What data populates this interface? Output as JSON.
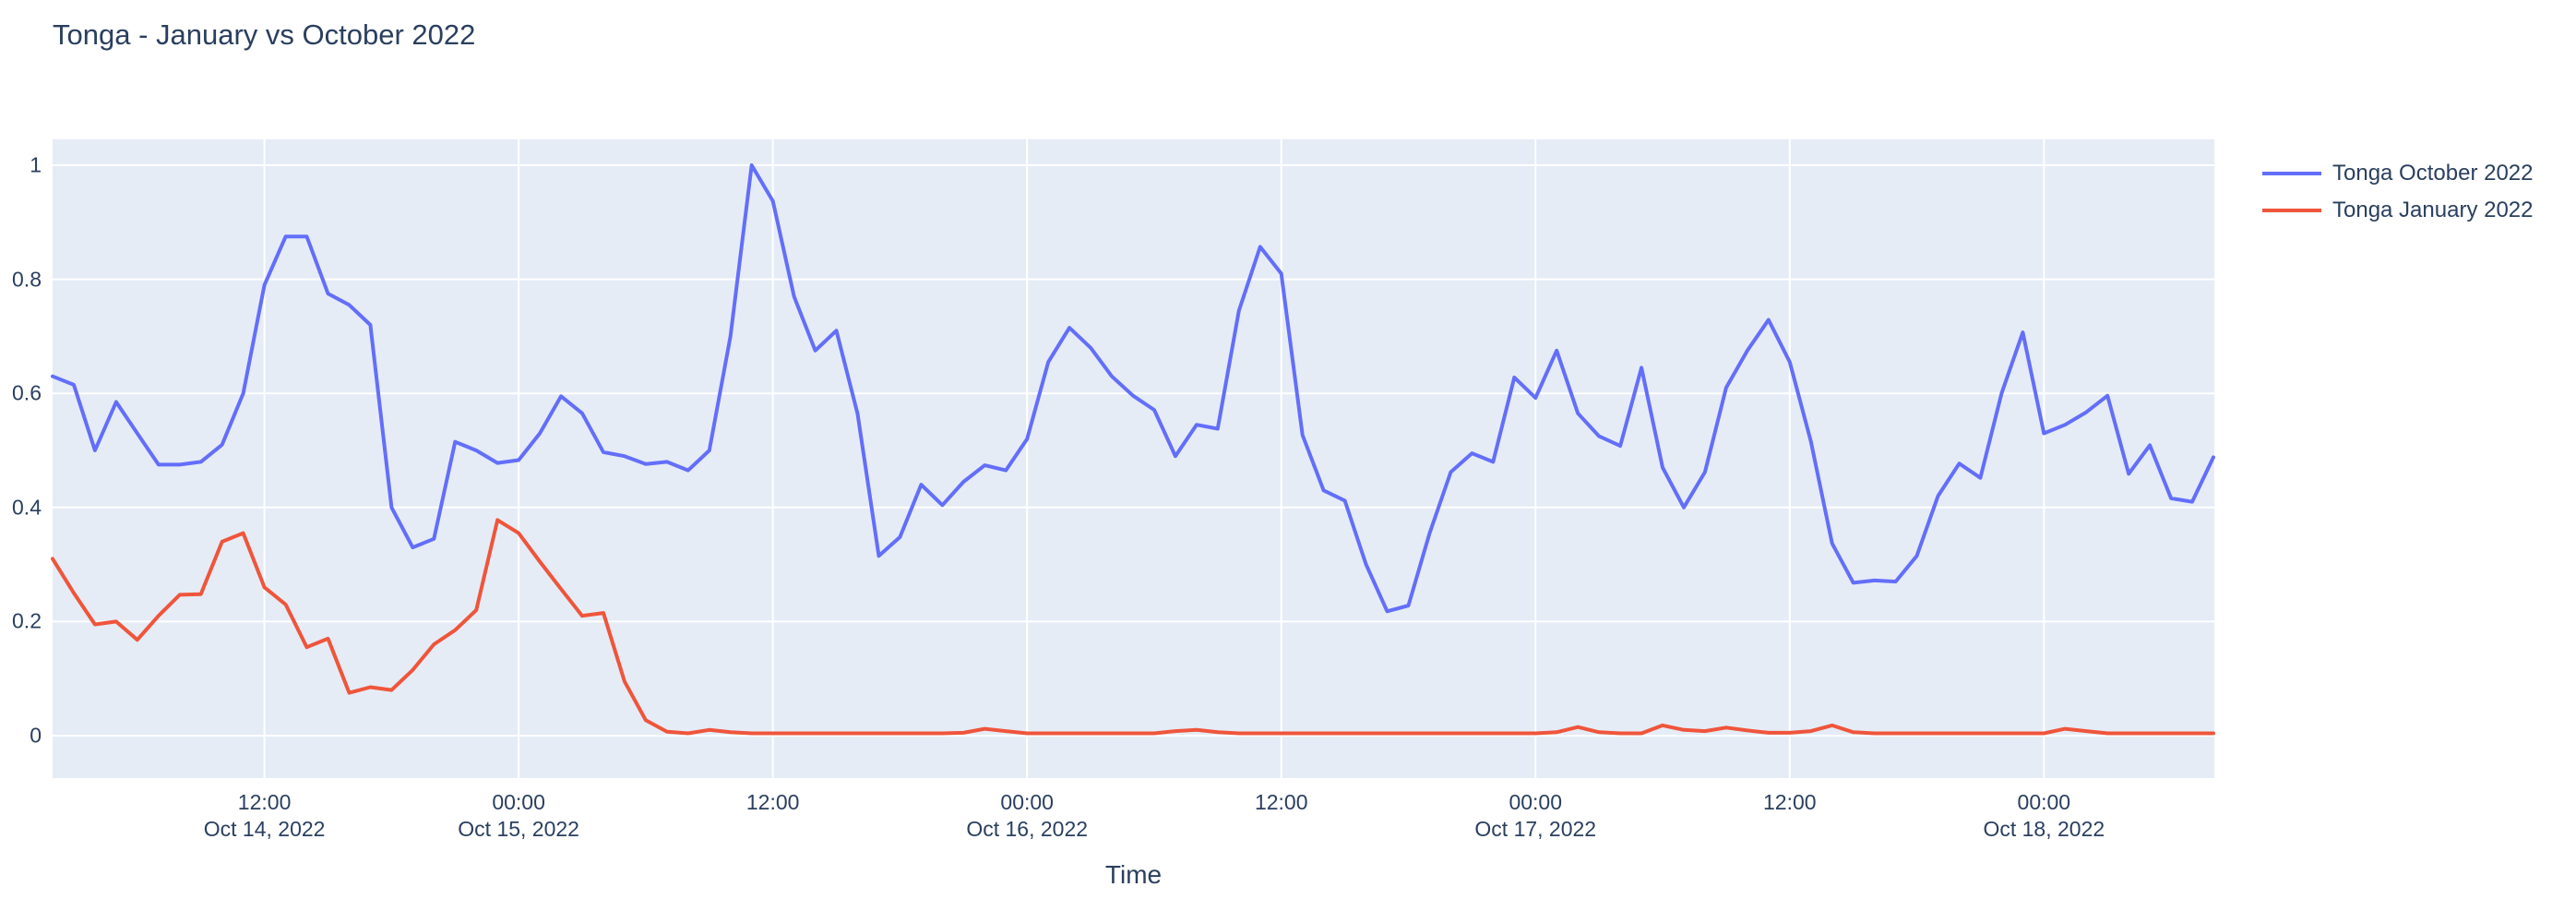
{
  "title": "Tonga - January vs October 2022",
  "chart_data": {
    "type": "line",
    "title": "Tonga - January vs October 2022",
    "xlabel": "Time",
    "ylabel": "",
    "x_start": "2022-10-14 02:00",
    "x_end": "2022-10-18 08:00",
    "x_step_hours": 1,
    "ylim": [
      0,
      1
    ],
    "grid": true,
    "legend_position": "right",
    "plot_bg": "#E5ECF6",
    "grid_color": "#FFFFFF",
    "text_color": "#2a3f5f",
    "yticks": [
      {
        "value": 0,
        "label": "0"
      },
      {
        "value": 0.2,
        "label": "0.2"
      },
      {
        "value": 0.4,
        "label": "0.4"
      },
      {
        "value": 0.6,
        "label": "0.6"
      },
      {
        "value": 0.8,
        "label": "0.8"
      },
      {
        "value": 1,
        "label": "1"
      }
    ],
    "xticks": [
      {
        "hour_index": 10,
        "label": "12:00",
        "date": "Oct 14, 2022"
      },
      {
        "hour_index": 22,
        "label": "00:00",
        "date": "Oct 15, 2022"
      },
      {
        "hour_index": 34,
        "label": "12:00",
        "date": ""
      },
      {
        "hour_index": 46,
        "label": "00:00",
        "date": "Oct 16, 2022"
      },
      {
        "hour_index": 58,
        "label": "12:00",
        "date": ""
      },
      {
        "hour_index": 70,
        "label": "00:00",
        "date": "Oct 17, 2022"
      },
      {
        "hour_index": 82,
        "label": "12:00",
        "date": ""
      },
      {
        "hour_index": 94,
        "label": "00:00",
        "date": "Oct 18, 2022"
      }
    ],
    "series": [
      {
        "name": "Tonga October 2022",
        "color": "#636EFA",
        "values": [
          0.63,
          0.615,
          0.5,
          0.585,
          0.53,
          0.475,
          0.475,
          0.48,
          0.51,
          0.6,
          0.79,
          0.875,
          0.875,
          0.775,
          0.755,
          0.72,
          0.4,
          0.33,
          0.345,
          0.515,
          0.5,
          0.478,
          0.483,
          0.53,
          0.595,
          0.565,
          0.497,
          0.49,
          0.476,
          0.48,
          0.465,
          0.5,
          0.7,
          1.0,
          0.937,
          0.77,
          0.675,
          0.71,
          0.564,
          0.315,
          0.348,
          0.44,
          0.404,
          0.445,
          0.474,
          0.465,
          0.52,
          0.655,
          0.715,
          0.68,
          0.63,
          0.596,
          0.571,
          0.49,
          0.545,
          0.538,
          0.745,
          0.857,
          0.81,
          0.527,
          0.43,
          0.412,
          0.3,
          0.218,
          0.228,
          0.355,
          0.462,
          0.495,
          0.48,
          0.628,
          0.592,
          0.675,
          0.565,
          0.525,
          0.508,
          0.645,
          0.47,
          0.4,
          0.462,
          0.61,
          0.675,
          0.729,
          0.655,
          0.516,
          0.337,
          0.268,
          0.272,
          0.27,
          0.315,
          0.42,
          0.477,
          0.452,
          0.6,
          0.707,
          0.53,
          0.545,
          0.567,
          0.596,
          0.459,
          0.509,
          0.416,
          0.41,
          0.488
        ]
      },
      {
        "name": "Tonga January 2022",
        "color": "#EF553B",
        "values": [
          0.31,
          0.25,
          0.195,
          0.2,
          0.168,
          0.21,
          0.247,
          0.248,
          0.34,
          0.355,
          0.26,
          0.23,
          0.155,
          0.17,
          0.075,
          0.085,
          0.08,
          0.115,
          0.16,
          0.185,
          0.22,
          0.378,
          0.355,
          0.305,
          0.257,
          0.21,
          0.215,
          0.095,
          0.027,
          0.007,
          0.004,
          0.01,
          0.006,
          0.004,
          0.004,
          0.004,
          0.004,
          0.004,
          0.004,
          0.004,
          0.004,
          0.004,
          0.004,
          0.005,
          0.012,
          0.008,
          0.004,
          0.004,
          0.004,
          0.004,
          0.004,
          0.004,
          0.004,
          0.008,
          0.01,
          0.006,
          0.004,
          0.004,
          0.004,
          0.004,
          0.004,
          0.004,
          0.004,
          0.004,
          0.004,
          0.004,
          0.004,
          0.004,
          0.004,
          0.004,
          0.004,
          0.006,
          0.015,
          0.006,
          0.004,
          0.004,
          0.018,
          0.01,
          0.008,
          0.014,
          0.009,
          0.005,
          0.005,
          0.008,
          0.018,
          0.006,
          0.004,
          0.004,
          0.004,
          0.004,
          0.004,
          0.004,
          0.004,
          0.004,
          0.004,
          0.012,
          0.008,
          0.004,
          0.004,
          0.004,
          0.004,
          0.004,
          0.004
        ]
      }
    ]
  }
}
